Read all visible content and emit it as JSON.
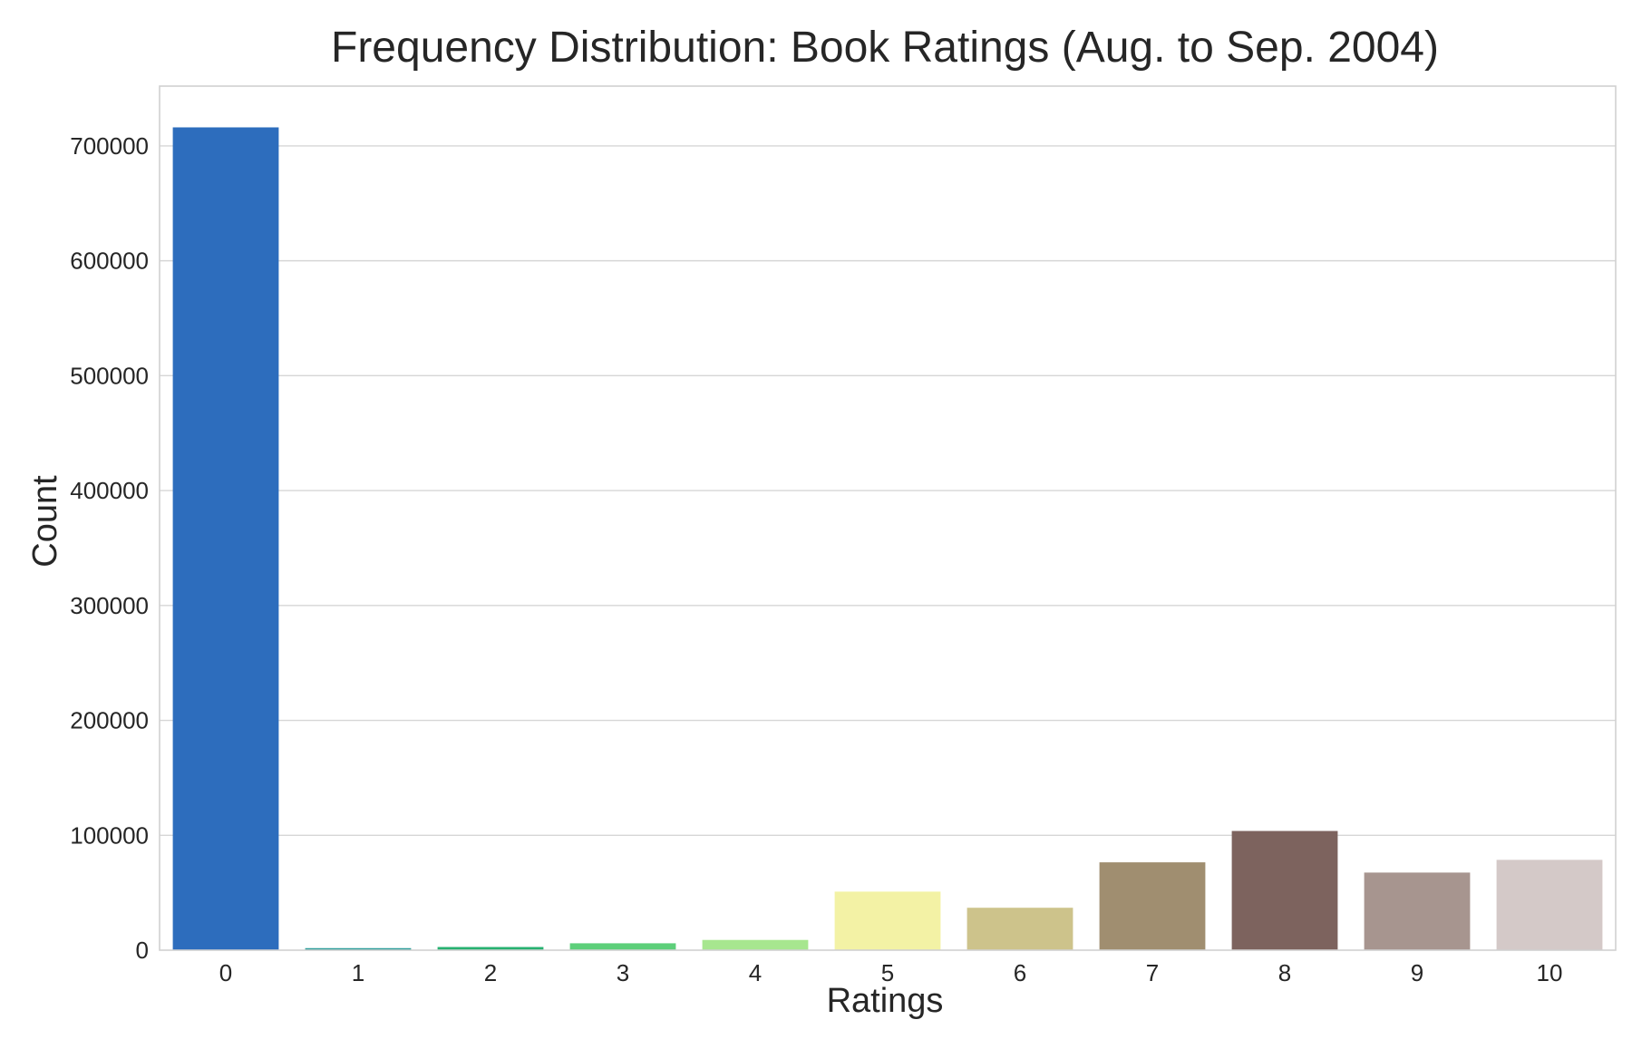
{
  "chart_data": {
    "type": "bar",
    "title": "Frequency Distribution: Book Ratings (Aug. to Sep. 2004)",
    "xlabel": "Ratings",
    "ylabel": "Count",
    "categories": [
      "0",
      "1",
      "2",
      "3",
      "4",
      "5",
      "6",
      "7",
      "8",
      "9",
      "10"
    ],
    "values": [
      716109,
      1770,
      2759,
      5996,
      8904,
      50974,
      36924,
      76457,
      103736,
      67541,
      78610
    ],
    "colors": [
      "#2d6dbd",
      "#2d9d9a",
      "#27b170",
      "#5dcf7a",
      "#a7e68f",
      "#f3f2a5",
      "#cdc38b",
      "#a08e70",
      "#7d635e",
      "#a7958f",
      "#d4c9c8"
    ],
    "ylim": [
      0,
      752000
    ],
    "yticks": [
      0,
      100000,
      200000,
      300000,
      400000,
      500000,
      600000,
      700000
    ],
    "ytick_labels": [
      "0",
      "100000",
      "200000",
      "300000",
      "400000",
      "500000",
      "600000",
      "700000"
    ],
    "grid": "horizontal"
  }
}
